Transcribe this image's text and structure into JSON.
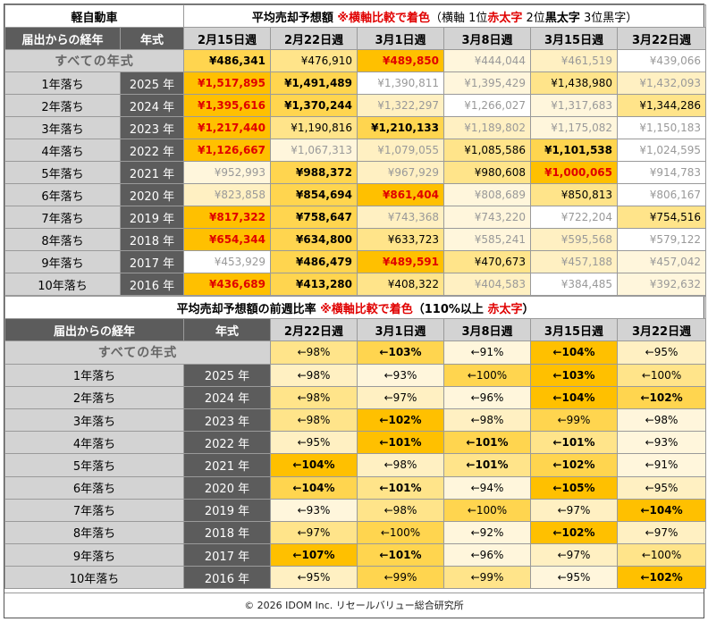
{
  "section1": {
    "category": "軽自動車",
    "title_prefix": "平均売却予想額 ",
    "title_note_red": "※横軸比較で着色",
    "legend_open": "（横軸 1位",
    "legend_red": "赤太字",
    "legend_mid": " 2位",
    "legend_bold": "黒太字",
    "legend_end": " 3位黒字）",
    "col_age_header": "届出からの経年",
    "col_year_header": "年式",
    "weeks": [
      "2月15日週",
      "2月22日週",
      "3月1日週",
      "3月8日週",
      "3月15日週",
      "3月22日週"
    ],
    "all_label": "すべての年式",
    "all_values": [
      "¥486,341",
      "¥476,910",
      "¥489,850",
      "¥444,044",
      "¥461,519",
      "¥439,066"
    ],
    "rows": [
      {
        "age": "1年落ち",
        "year": "2025 年",
        "values": [
          "¥1,517,895",
          "¥1,491,489",
          "¥1,390,811",
          "¥1,395,429",
          "¥1,438,980",
          "¥1,432,093"
        ]
      },
      {
        "age": "2年落ち",
        "year": "2024 年",
        "values": [
          "¥1,395,616",
          "¥1,370,244",
          "¥1,322,297",
          "¥1,266,027",
          "¥1,317,683",
          "¥1,344,286"
        ]
      },
      {
        "age": "3年落ち",
        "year": "2023 年",
        "values": [
          "¥1,217,440",
          "¥1,190,816",
          "¥1,210,133",
          "¥1,189,802",
          "¥1,175,082",
          "¥1,150,183"
        ]
      },
      {
        "age": "4年落ち",
        "year": "2022 年",
        "values": [
          "¥1,126,667",
          "¥1,067,313",
          "¥1,079,055",
          "¥1,085,586",
          "¥1,101,538",
          "¥1,024,595"
        ]
      },
      {
        "age": "5年落ち",
        "year": "2021 年",
        "values": [
          "¥952,993",
          "¥988,372",
          "¥967,929",
          "¥980,608",
          "¥1,000,065",
          "¥914,783"
        ]
      },
      {
        "age": "6年落ち",
        "year": "2020 年",
        "values": [
          "¥823,858",
          "¥854,694",
          "¥861,404",
          "¥808,689",
          "¥850,813",
          "¥806,167"
        ]
      },
      {
        "age": "7年落ち",
        "year": "2019 年",
        "values": [
          "¥817,322",
          "¥758,647",
          "¥743,368",
          "¥743,220",
          "¥722,204",
          "¥754,516"
        ]
      },
      {
        "age": "8年落ち",
        "year": "2018 年",
        "values": [
          "¥654,344",
          "¥634,800",
          "¥633,723",
          "¥585,241",
          "¥595,568",
          "¥579,122"
        ]
      },
      {
        "age": "9年落ち",
        "year": "2017 年",
        "values": [
          "¥453,929",
          "¥486,479",
          "¥489,591",
          "¥470,673",
          "¥457,188",
          "¥457,042"
        ]
      },
      {
        "age": "10年落ち",
        "year": "2016 年",
        "values": [
          "¥436,689",
          "¥413,280",
          "¥408,322",
          "¥404,583",
          "¥384,485",
          "¥392,632"
        ]
      }
    ]
  },
  "section2": {
    "title_prefix": "平均売却予想額の前週比率 ",
    "title_note_red": "※横軸比較で着色",
    "legend_open": "（110%以上 ",
    "legend_red": "赤太字",
    "legend_end": "）",
    "col_age_header": "届出からの経年",
    "col_year_header": "年式",
    "weeks": [
      "2月22日週",
      "3月1日週",
      "3月8日週",
      "3月15日週",
      "3月22日週"
    ],
    "all_label": "すべての年式",
    "all_values": [
      "←98%",
      "←103%",
      "←91%",
      "←104%",
      "←95%"
    ],
    "rows": [
      {
        "age": "1年落ち",
        "year": "2025 年",
        "values": [
          "←98%",
          "←93%",
          "←100%",
          "←103%",
          "←100%"
        ]
      },
      {
        "age": "2年落ち",
        "year": "2024 年",
        "values": [
          "←98%",
          "←97%",
          "←96%",
          "←104%",
          "←102%"
        ]
      },
      {
        "age": "3年落ち",
        "year": "2023 年",
        "values": [
          "←98%",
          "←102%",
          "←98%",
          "←99%",
          "←98%"
        ]
      },
      {
        "age": "4年落ち",
        "year": "2022 年",
        "values": [
          "←95%",
          "←101%",
          "←101%",
          "←101%",
          "←93%"
        ]
      },
      {
        "age": "5年落ち",
        "year": "2021 年",
        "values": [
          "←104%",
          "←98%",
          "←101%",
          "←102%",
          "←91%"
        ]
      },
      {
        "age": "6年落ち",
        "year": "2020 年",
        "values": [
          "←104%",
          "←101%",
          "←94%",
          "←105%",
          "←95%"
        ]
      },
      {
        "age": "7年落ち",
        "year": "2019 年",
        "values": [
          "←93%",
          "←98%",
          "←100%",
          "←97%",
          "←104%"
        ]
      },
      {
        "age": "8年落ち",
        "year": "2018 年",
        "values": [
          "←97%",
          "←100%",
          "←92%",
          "←102%",
          "←97%"
        ]
      },
      {
        "age": "9年落ち",
        "year": "2017 年",
        "values": [
          "←107%",
          "←101%",
          "←96%",
          "←97%",
          "←100%"
        ]
      },
      {
        "age": "10年落ち",
        "year": "2016 年",
        "values": [
          "←95%",
          "←99%",
          "←99%",
          "←95%",
          "←102%"
        ]
      }
    ]
  },
  "footer": "© 2026 IDOM Inc. リセールバリュー総合研究所",
  "colors": {
    "rank1": "#ffc000",
    "rank2": "#ffd54f",
    "rank3": "#ffe48a",
    "rank4": "#fff0c2",
    "rank5": "#fff6dc",
    "rank6": "#ffffff",
    "header_gray": "#d3d3d3",
    "header_dark": "#5c5c5c",
    "red_text": "#e00000"
  }
}
